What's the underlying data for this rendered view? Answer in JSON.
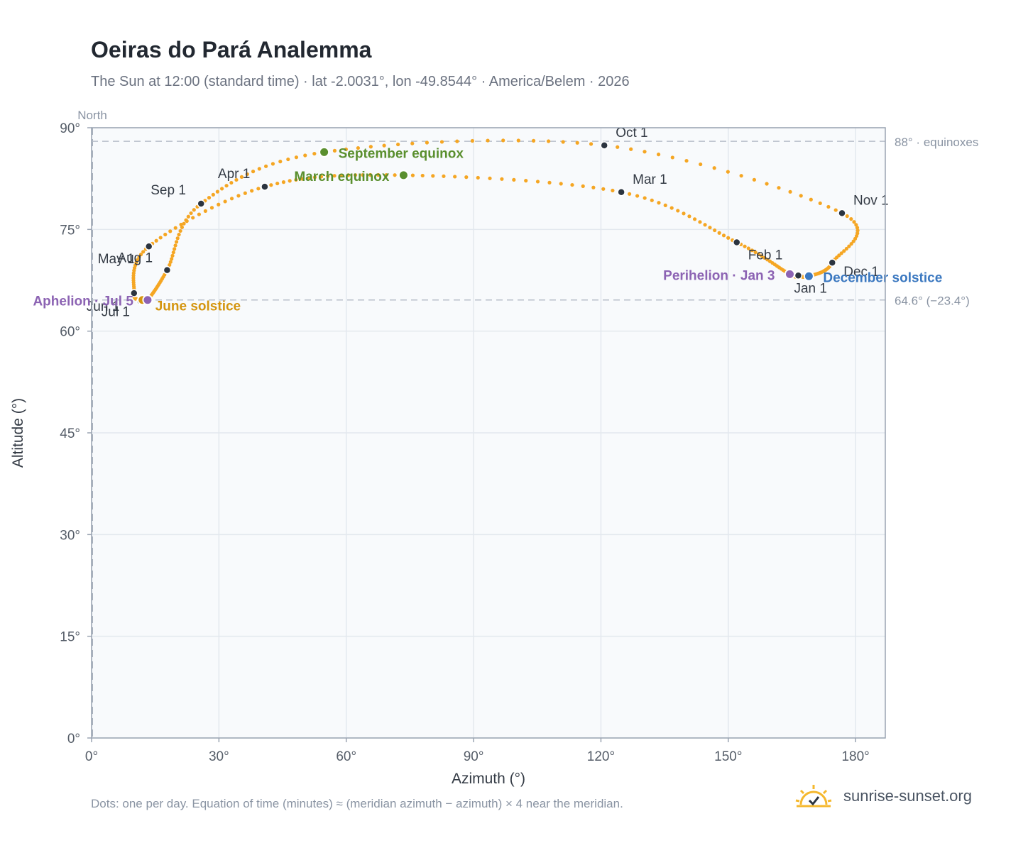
{
  "header": {
    "title": "Oeiras do Pará Analemma",
    "subtitle": "The Sun at 12:00 (standard time) · lat -2.0031°, lon -49.8544° · America/Belem · 2026"
  },
  "footer": {
    "note": "Dots: one per day. Equation of time (minutes) ≈ (meridian azimuth − azimuth) × 4 near the meridian.",
    "brand": "sunrise-sunset.org",
    "brand_icon": "sun-logo-icon"
  },
  "chart_data": {
    "type": "scatter",
    "title": "Oeiras do Pará Analemma",
    "subtitle": "The Sun at 12:00 (standard time) · lat -2.0031°, lon -49.8544° · America/Belem · 2026",
    "xlabel": "Azimuth (°)",
    "ylabel": "Altitude (°)",
    "xlim": [
      0,
      187
    ],
    "ylim": [
      0,
      90
    ],
    "x_ticks": [
      0,
      30,
      60,
      90,
      120,
      150,
      180
    ],
    "x_tick_labels": [
      "0°",
      "30°",
      "60°",
      "90°",
      "120°",
      "150°",
      "180°"
    ],
    "y_ticks": [
      0,
      15,
      30,
      45,
      60,
      75,
      90
    ],
    "y_tick_labels": [
      "0°",
      "15°",
      "30°",
      "45°",
      "60°",
      "75°",
      "90°"
    ],
    "grid": true,
    "north_label": "North",
    "reference_lines": [
      {
        "y": 88,
        "label": "88° · equinoxes"
      },
      {
        "y": 64.6,
        "label": "64.6° (−23.4°)"
      }
    ],
    "series": [
      {
        "color": "#f5a623",
        "path_dates": [
          "Jan 1",
          "Jan 3",
          "Feb 1",
          "Mar 1",
          "Mar 20",
          "Apr 1",
          "May 1",
          "Jun 1",
          "Jun 21",
          "Jul 1",
          "Jul 5",
          "Aug 1",
          "Sep 1",
          "Sep 23",
          "Oct 1",
          "Nov 1",
          "Dec 1",
          "Dec 21",
          "Jan 1"
        ],
        "path_x": [
          166.5,
          164.5,
          152,
          124.8,
          73.5,
          40.8,
          13.5,
          10,
          12,
          11.5,
          13.2,
          17.8,
          25.8,
          54.8,
          120.8,
          176.8,
          174.5,
          169,
          166.5
        ],
        "path_y": [
          68.2,
          68.4,
          73.1,
          80.5,
          83.0,
          81.3,
          72.5,
          65.6,
          64.6,
          64.4,
          64.6,
          69.0,
          78.8,
          86.4,
          87.4,
          77.4,
          70.1,
          68.1,
          68.2
        ]
      }
    ],
    "month_markers": [
      {
        "label": "Jan 1",
        "x": 166.5,
        "y": 68.2
      },
      {
        "label": "Feb 1",
        "x": 152,
        "y": 73.1
      },
      {
        "label": "Mar 1",
        "x": 124.8,
        "y": 80.5
      },
      {
        "label": "Apr 1",
        "x": 40.8,
        "y": 81.3
      },
      {
        "label": "May 1",
        "x": 13.5,
        "y": 72.5
      },
      {
        "label": "Jun 1",
        "x": 10,
        "y": 65.6
      },
      {
        "label": "Jul 1",
        "x": 11.5,
        "y": 64.4
      },
      {
        "label": "Aug 1",
        "x": 17.8,
        "y": 69.0
      },
      {
        "label": "Sep 1",
        "x": 25.8,
        "y": 78.8
      },
      {
        "label": "Oct 1",
        "x": 120.8,
        "y": 87.4
      },
      {
        "label": "Nov 1",
        "x": 176.8,
        "y": 77.4
      },
      {
        "label": "Dec 1",
        "x": 174.5,
        "y": 70.1
      }
    ],
    "events": [
      {
        "label": "March equinox",
        "x": 73.5,
        "y": 83.0,
        "color": "#5a8f2e"
      },
      {
        "label": "September equinox",
        "x": 54.8,
        "y": 86.4,
        "color": "#5a8f2e"
      },
      {
        "label": "June solstice",
        "x": 12,
        "y": 64.6,
        "color": "#d4950f"
      },
      {
        "label": "December solstice",
        "x": 169,
        "y": 68.1,
        "color": "#3b78c0"
      },
      {
        "label": "Perihelion · Jan 3",
        "x": 164.5,
        "y": 68.4,
        "color": "#8c63b3"
      },
      {
        "label": "Aphelion · Jul 5",
        "x": 13.2,
        "y": 64.6,
        "color": "#8c63b3"
      }
    ]
  }
}
